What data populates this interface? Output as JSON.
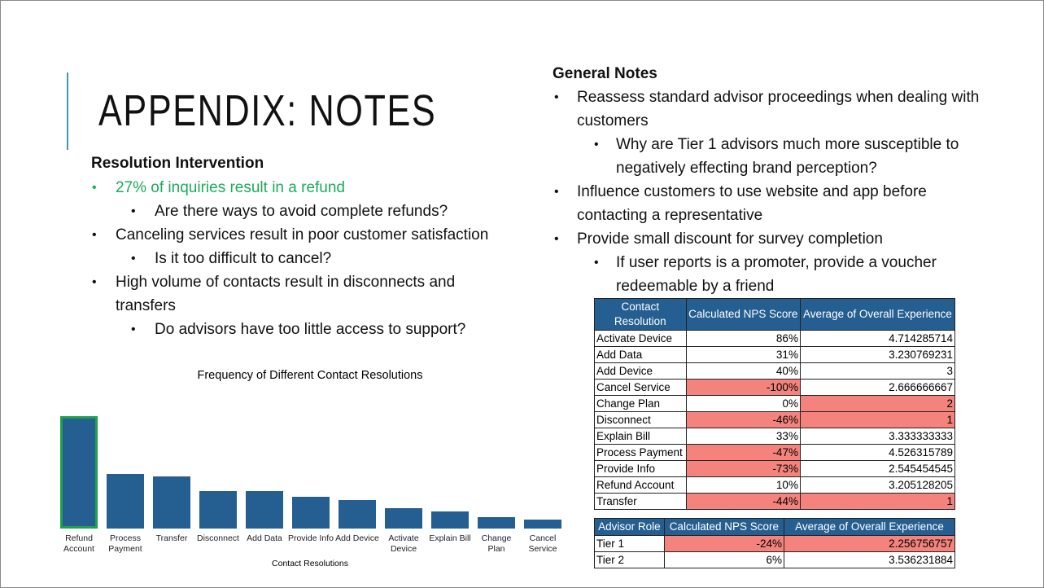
{
  "title": "APPENDIX: NOTES",
  "left": {
    "heading": "Resolution Intervention",
    "items": [
      {
        "text": "27% of inquiries result in a refund",
        "level": 1,
        "color": "#1aab5a"
      },
      {
        "text": "Are there ways to avoid complete refunds?",
        "level": 2
      },
      {
        "text": "Canceling services result in poor customer satisfaction",
        "level": 1
      },
      {
        "text": "Is it too difficult to cancel?",
        "level": 2
      },
      {
        "text": "High volume of contacts result in disconnects and transfers",
        "level": 1
      },
      {
        "text": "Do advisors have too little access to support?",
        "level": 2
      }
    ]
  },
  "right": {
    "heading": "General Notes",
    "items": [
      {
        "text": "Reassess standard advisor proceedings when dealing with customers",
        "level": 1
      },
      {
        "text": "Why are Tier 1 advisors much more susceptible to negatively effecting brand perception?",
        "level": 2
      },
      {
        "text": "Influence customers to use website and app before contacting a representative",
        "level": 1
      },
      {
        "text": "Provide small discount for survey completion",
        "level": 1
      },
      {
        "text": "If user reports is a promoter, provide a voucher redeemable by a friend",
        "level": 2
      }
    ]
  },
  "chart_data": {
    "type": "bar",
    "title": "Frequency of Different Contact Resolutions",
    "x_label": "Contact Resolutions",
    "categories": [
      "Refund Account",
      "Process Payment",
      "Transfer",
      "Disconnect",
      "Add Data",
      "Provide Info",
      "Add Device",
      "Activate Device",
      "Explain Bill",
      "Change Plan",
      "Cancel Service"
    ],
    "values": [
      39,
      19,
      18,
      13,
      13,
      11,
      10,
      7,
      6,
      4,
      3
    ],
    "color": "#255e91",
    "highlight": "Refund Account",
    "highlight_color": "#1fa14c"
  },
  "table1": {
    "header": [
      "Contact Resolution",
      "Calculated NPS Score",
      "Average of Overall Experience"
    ],
    "header_color": "#255e91",
    "highlight_color": "#f4837d",
    "rows": [
      {
        "cells": [
          "Activate Device",
          "86%",
          "4.714285714"
        ],
        "red": [
          false,
          false,
          false
        ]
      },
      {
        "cells": [
          "Add Data",
          "31%",
          "3.230769231"
        ],
        "red": [
          false,
          false,
          false
        ]
      },
      {
        "cells": [
          "Add Device",
          "40%",
          "3"
        ],
        "red": [
          false,
          false,
          false
        ]
      },
      {
        "cells": [
          "Cancel Service",
          "-100%",
          "2.666666667"
        ],
        "red": [
          false,
          true,
          false
        ]
      },
      {
        "cells": [
          "Change Plan",
          "0%",
          "2"
        ],
        "red": [
          false,
          false,
          true
        ]
      },
      {
        "cells": [
          "Disconnect",
          "-46%",
          "1"
        ],
        "red": [
          false,
          true,
          true
        ]
      },
      {
        "cells": [
          "Explain Bill",
          "33%",
          "3.333333333"
        ],
        "red": [
          false,
          false,
          false
        ]
      },
      {
        "cells": [
          "Process Payment",
          "-47%",
          "4.526315789"
        ],
        "red": [
          false,
          true,
          false
        ]
      },
      {
        "cells": [
          "Provide Info",
          "-73%",
          "2.545454545"
        ],
        "red": [
          false,
          true,
          false
        ]
      },
      {
        "cells": [
          "Refund Account",
          "10%",
          "3.205128205"
        ],
        "red": [
          false,
          false,
          false
        ]
      },
      {
        "cells": [
          "Transfer",
          "-44%",
          "1"
        ],
        "red": [
          false,
          true,
          true
        ]
      }
    ]
  },
  "table2": {
    "header": [
      "Advisor Role",
      "Calculated NPS Score",
      "Average of Overall Experience"
    ],
    "header_color": "#255e91",
    "highlight_color": "#f4837d",
    "rows": [
      {
        "cells": [
          "Tier 1",
          "-24%",
          "2.256756757"
        ],
        "red": [
          false,
          true,
          true
        ]
      },
      {
        "cells": [
          "Tier 2",
          "6%",
          "3.536231884"
        ],
        "red": [
          false,
          false,
          false
        ]
      }
    ]
  }
}
